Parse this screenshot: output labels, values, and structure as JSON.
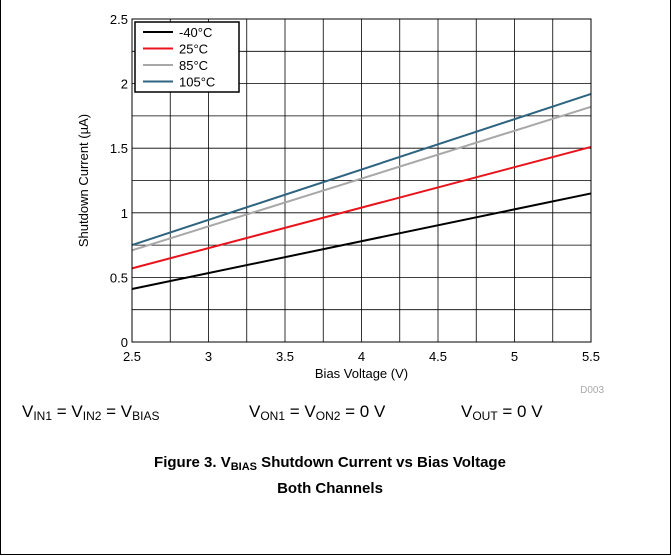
{
  "chart_data": {
    "type": "line",
    "xlabel": "Bias Voltage (V)",
    "ylabel": "Shutdown Current (µA)",
    "xlim": [
      2.5,
      5.5
    ],
    "ylim": [
      0,
      2.5
    ],
    "x_ticks": [
      "2.5",
      "3",
      "3.5",
      "4",
      "4.5",
      "5",
      "5.5"
    ],
    "y_ticks": [
      "0",
      "0.5",
      "1",
      "1.5",
      "2",
      "2.5"
    ],
    "grid": true,
    "legend_position": "top-left",
    "figure_id": "D003",
    "series": [
      {
        "name": "-40°C",
        "color": "#000000",
        "x": [
          2.5,
          5.5
        ],
        "y": [
          0.41,
          1.15
        ]
      },
      {
        "name": "25°C",
        "color": "#e8141c",
        "x": [
          2.5,
          5.5
        ],
        "y": [
          0.57,
          1.51
        ]
      },
      {
        "name": "85°C",
        "color": "#a8a8a8",
        "x": [
          2.5,
          5.5
        ],
        "y": [
          0.71,
          1.82
        ]
      },
      {
        "name": "105°C",
        "color": "#2e6480",
        "x": [
          2.5,
          5.5
        ],
        "y": [
          0.75,
          1.92
        ]
      }
    ]
  },
  "conditions": {
    "c1": {
      "v1": "V",
      "s1": "IN1",
      "eq1": " = V",
      "s2": "IN2",
      "eq2": " = V",
      "s3": "BIAS"
    },
    "c2": {
      "v1": "V",
      "s1": "ON1",
      "eq1": " = V",
      "s2": "ON2",
      "tail": " = 0 V"
    },
    "c3": {
      "v1": "V",
      "s1": "OUT",
      "tail": " = 0 V"
    }
  },
  "caption": {
    "prefix": "Figure 3. V",
    "sub": "BIAS",
    "rest": " Shutdown Current vs Bias Voltage",
    "line2": "Both Channels"
  }
}
